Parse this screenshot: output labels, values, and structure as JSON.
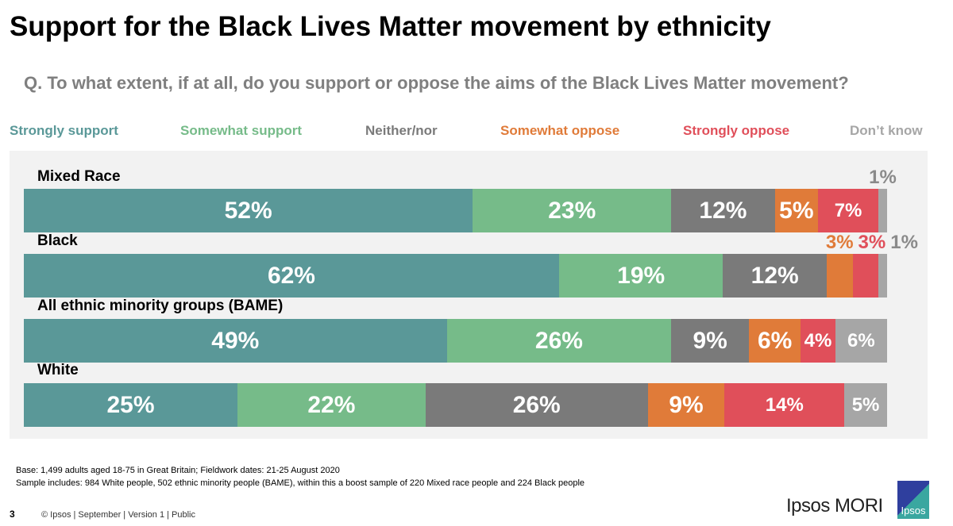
{
  "title": "Support for the Black Lives Matter movement by ethnicity",
  "question": "Q. To what extent, if at all, do you support or oppose the aims of the Black Lives Matter movement?",
  "chart_data": {
    "type": "bar",
    "orientation": "horizontal-stacked",
    "categories": [
      "Mixed Race",
      "Black",
      "All ethnic minority groups (BAME)",
      "White"
    ],
    "series": [
      {
        "name": "Strongly support",
        "color": "#5a9898",
        "values": [
          52,
          62,
          49,
          25
        ]
      },
      {
        "name": "Somewhat  support",
        "color": "#76bb89",
        "values": [
          23,
          19,
          26,
          22
        ]
      },
      {
        "name": "Neither/nor",
        "color": "#7a7a7a",
        "values": [
          12,
          12,
          9,
          26
        ]
      },
      {
        "name": "Somewhat oppose",
        "color": "#e07b39",
        "values": [
          5,
          3,
          6,
          9
        ]
      },
      {
        "name": "Strongly oppose",
        "color": "#e04f5a",
        "values": [
          7,
          3,
          4,
          14
        ]
      },
      {
        "name": "Don’t know",
        "color": "#a6a6a6",
        "values": [
          1,
          1,
          6,
          5
        ]
      }
    ],
    "unit": "%",
    "legend": "top"
  },
  "footer": {
    "base": "Base: 1,499 adults aged 18-75 in Great Britain; Fieldwork dates: 21-25 August 2020",
    "sample": "Sample includes: 984 White people,  502 ethnic minority people (BAME), within this a boost sample of 220 Mixed race people and 224 Black people",
    "page": "3",
    "copyright": "© Ipsos | September | Version 1 | Public",
    "brand": "Ipsos MORI",
    "logo": "Ipsos"
  }
}
